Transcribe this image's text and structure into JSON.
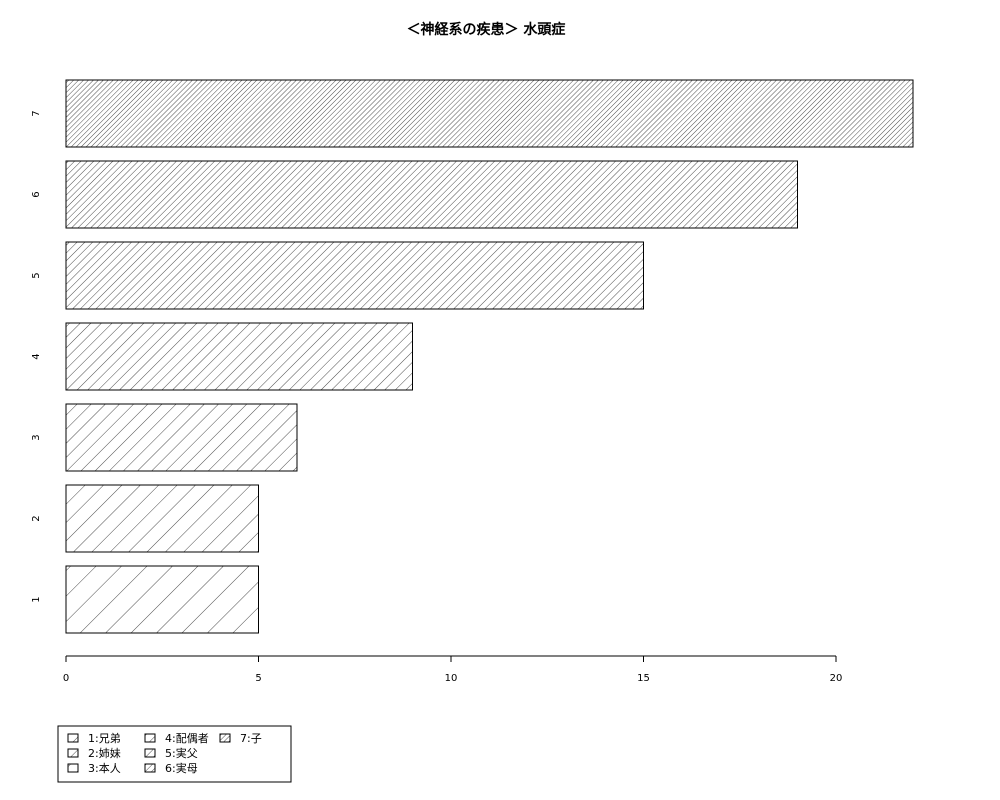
{
  "chart_data": {
    "type": "bar",
    "orientation": "horizontal",
    "title": "＜神経系の疾患＞ 水頭症",
    "xlabel": "",
    "ylabel": "",
    "categories": [
      "1",
      "2",
      "3",
      "4",
      "5",
      "6",
      "7"
    ],
    "values": [
      5,
      5,
      6,
      9,
      15,
      19,
      22
    ],
    "xlim": [
      0,
      22
    ],
    "x_ticks": [
      0,
      5,
      10,
      15,
      20
    ],
    "grid": false,
    "legend_placement": "bottom-left",
    "legend_items": [
      "1:兄弟",
      "2:姉妹",
      "3:本人",
      "4:配偶者",
      "5:実父",
      "6:実母",
      "7:子"
    ],
    "bar_fill": "#ffffff",
    "bar_stroke": "#000000"
  }
}
